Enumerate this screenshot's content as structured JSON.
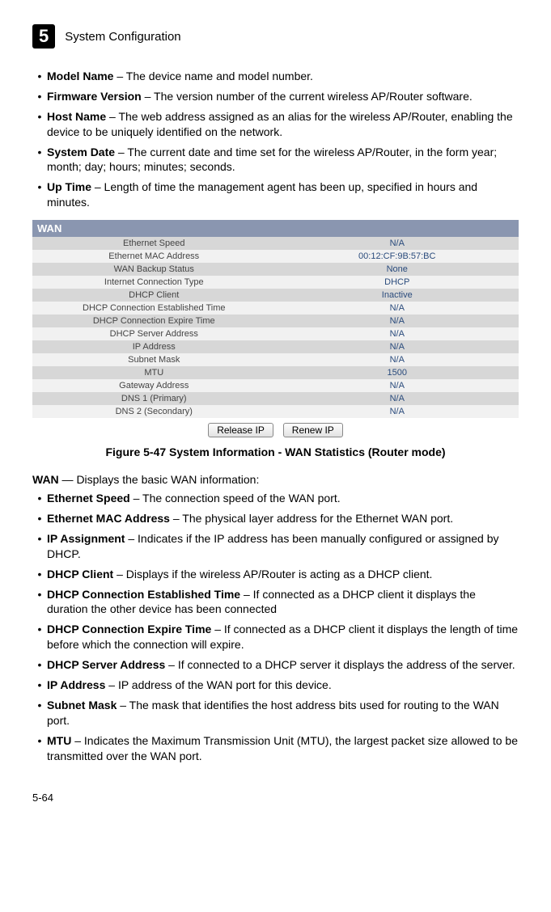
{
  "header": {
    "chapter": "5",
    "title": "System Configuration"
  },
  "topBullets": [
    {
      "term": "Model Name",
      "desc": " – The device name and model number."
    },
    {
      "term": "Firmware Version",
      "desc": " – The version number of the current wireless AP/Router software."
    },
    {
      "term": "Host Name",
      "desc": " – The web address assigned as an alias for the wireless AP/Router, enabling the device to be uniquely identified on the network."
    },
    {
      "term": "System Date",
      "desc": " – The current date and time set for the wireless AP/Router, in the form year; month; day; hours; minutes; seconds."
    },
    {
      "term": "Up Time",
      "desc": " – Length of time the management agent has been up, specified in hours and minutes."
    }
  ],
  "wan": {
    "heading": "WAN",
    "rows": [
      {
        "label": "Ethernet Speed",
        "value": "N/A"
      },
      {
        "label": "Ethernet MAC Address",
        "value": "00:12:CF:9B:57:BC"
      },
      {
        "label": "WAN Backup Status",
        "value": "None"
      },
      {
        "label": "Internet Connection Type",
        "value": "DHCP"
      },
      {
        "label": "DHCP Client",
        "value": "Inactive"
      },
      {
        "label": "DHCP Connection Established Time",
        "value": "N/A"
      },
      {
        "label": "DHCP Connection Expire Time",
        "value": "N/A"
      },
      {
        "label": "DHCP Server Address",
        "value": "N/A"
      },
      {
        "label": "IP Address",
        "value": "N/A"
      },
      {
        "label": "Subnet Mask",
        "value": "N/A"
      },
      {
        "label": "MTU",
        "value": "1500"
      },
      {
        "label": "Gateway Address",
        "value": "N/A"
      },
      {
        "label": "DNS 1 (Primary)",
        "value": "N/A"
      },
      {
        "label": "DNS 2 (Secondary)",
        "value": "N/A"
      }
    ],
    "buttons": {
      "release": "Release IP",
      "renew": "Renew IP"
    }
  },
  "figureCaption": "Figure 5-47  System Information - WAN Statistics (Router mode)",
  "wanIntro": {
    "term": "WAN",
    "desc": " — Displays the basic WAN information:"
  },
  "bottomBullets": [
    {
      "term": "Ethernet Speed",
      "desc": " – The connection speed of the WAN port."
    },
    {
      "term": "Ethernet MAC Address",
      "desc": " – The physical layer address for the Ethernet WAN port."
    },
    {
      "term": "IP Assignment",
      "desc": " – Indicates if the IP address has been manually configured or assigned by DHCP."
    },
    {
      "term": "DHCP Client",
      "desc": " – Displays if the wireless AP/Router is acting as a DHCP client."
    },
    {
      "term": "DHCP Connection Established Time",
      "desc": " – If connected as a DHCP client it displays the duration the other device has been connected"
    },
    {
      "term": "DHCP Connection Expire Time",
      "desc": " – If connected as a DHCP client it displays the length of time before which the connection will expire."
    },
    {
      "term": "DHCP Server Address",
      "desc": " – If connected to a DHCP server it displays the address of the server."
    },
    {
      "term": "IP Address",
      "desc": " – IP address of the WAN port for this device."
    },
    {
      "term": "Subnet Mask",
      "desc": " – The mask that identifies the host address bits used for routing to the WAN port."
    },
    {
      "term": "MTU",
      "desc": " – Indicates the Maximum Transmission Unit (MTU), the largest packet size allowed to be transmitted over the WAN port."
    }
  ],
  "pageNumber": "5-64"
}
